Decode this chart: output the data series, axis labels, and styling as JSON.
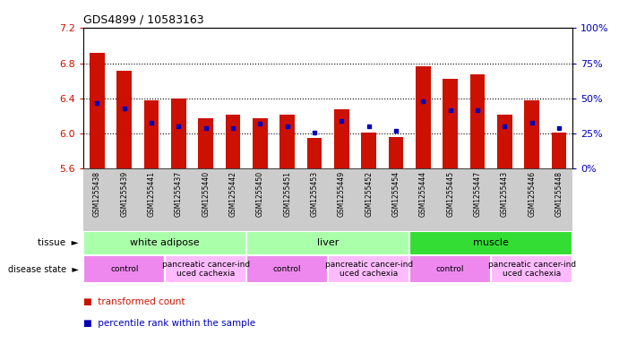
{
  "title": "GDS4899 / 10583163",
  "samples": [
    "GSM1255438",
    "GSM1255439",
    "GSM1255441",
    "GSM1255437",
    "GSM1255440",
    "GSM1255442",
    "GSM1255450",
    "GSM1255451",
    "GSM1255453",
    "GSM1255449",
    "GSM1255452",
    "GSM1255454",
    "GSM1255444",
    "GSM1255445",
    "GSM1255447",
    "GSM1255443",
    "GSM1255446",
    "GSM1255448"
  ],
  "transformed_count": [
    6.92,
    6.72,
    6.38,
    6.4,
    6.18,
    6.22,
    6.18,
    6.22,
    5.95,
    6.28,
    6.01,
    5.96,
    6.77,
    6.62,
    6.67,
    6.22,
    6.38,
    6.01
  ],
  "percentile": [
    47,
    43,
    33,
    30,
    29,
    29,
    32,
    30,
    26,
    34,
    30,
    27,
    48,
    42,
    42,
    30,
    33,
    29
  ],
  "ylim_left": [
    5.6,
    7.2
  ],
  "ylim_right": [
    0,
    100
  ],
  "yticks_left": [
    5.6,
    6.0,
    6.4,
    6.8,
    7.2
  ],
  "yticks_right": [
    0,
    25,
    50,
    75,
    100
  ],
  "ytick_labels_right": [
    "0%",
    "25%",
    "50%",
    "75%",
    "100%"
  ],
  "bar_color": "#cc1100",
  "dot_color": "#0000bb",
  "tissue_groups": [
    {
      "label": "white adipose",
      "start": 0,
      "end": 5,
      "color": "#aaffaa"
    },
    {
      "label": "liver",
      "start": 6,
      "end": 11,
      "color": "#aaffaa"
    },
    {
      "label": "muscle",
      "start": 12,
      "end": 17,
      "color": "#33dd33"
    }
  ],
  "disease_groups": [
    {
      "label": "control",
      "start": 0,
      "end": 2,
      "color": "#ee88ee"
    },
    {
      "label": "pancreatic cancer-ind\nuced cachexia",
      "start": 3,
      "end": 5,
      "color": "#ffbbff"
    },
    {
      "label": "control",
      "start": 6,
      "end": 8,
      "color": "#ee88ee"
    },
    {
      "label": "pancreatic cancer-ind\nuced cachexia",
      "start": 9,
      "end": 11,
      "color": "#ffbbff"
    },
    {
      "label": "control",
      "start": 12,
      "end": 14,
      "color": "#ee88ee"
    },
    {
      "label": "pancreatic cancer-ind\nuced cachexia",
      "start": 15,
      "end": 17,
      "color": "#ffbbff"
    }
  ],
  "bar_width": 0.55,
  "baseline": 5.6,
  "left_axis_color": "#cc1100",
  "right_axis_color": "#0000bb",
  "bg_color": "#ffffff",
  "label_bg_color": "#cccccc",
  "legend_red_label": "transformed count",
  "legend_blue_label": "percentile rank within the sample"
}
